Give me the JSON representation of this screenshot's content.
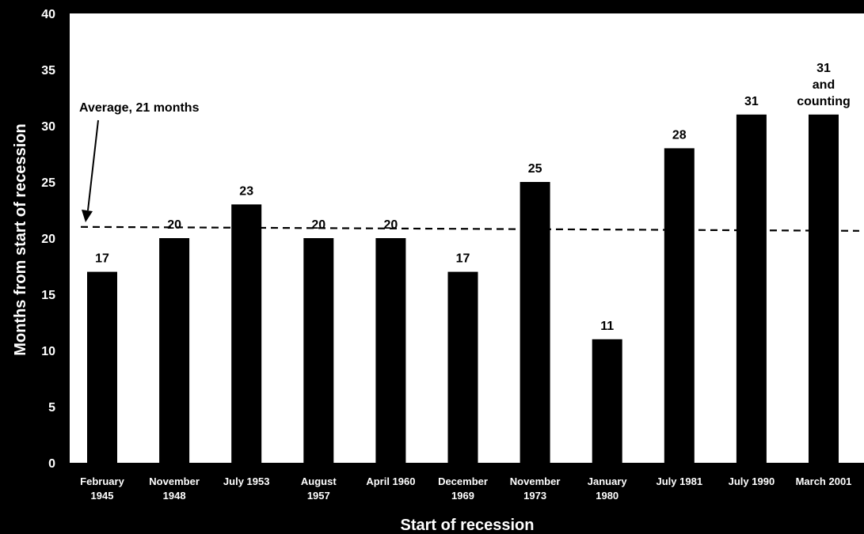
{
  "chart_data": {
    "type": "bar",
    "title": "",
    "xlabel": "Start of recession",
    "ylabel": "Months from start of recession",
    "ylim": [
      0,
      40
    ],
    "yticks": [
      0,
      5,
      10,
      15,
      20,
      25,
      30,
      35,
      40
    ],
    "categories": [
      [
        "February",
        "1945"
      ],
      [
        "November",
        "1948"
      ],
      [
        "July 1953"
      ],
      [
        "August",
        "1957"
      ],
      [
        "April 1960"
      ],
      [
        "December",
        "1969"
      ],
      [
        "November",
        "1973"
      ],
      [
        "January",
        "1980"
      ],
      [
        "July 1981"
      ],
      [
        "July 1990"
      ],
      [
        "March 2001"
      ]
    ],
    "values": [
      17,
      20,
      23,
      20,
      20,
      17,
      25,
      11,
      28,
      31,
      31
    ],
    "data_labels": [
      [
        "17"
      ],
      [
        "20"
      ],
      [
        "23"
      ],
      [
        "20"
      ],
      [
        "20"
      ],
      [
        "17"
      ],
      [
        "25"
      ],
      [
        "11"
      ],
      [
        "28"
      ],
      [
        "31"
      ],
      [
        "31",
        "and",
        "counting"
      ]
    ],
    "reference_line": {
      "value": 21,
      "style": "dashed",
      "label": "Average, 21 months"
    },
    "bar_color": "#000000",
    "plot_background": "#ffffff",
    "frame_color": "#000000",
    "grid": false,
    "legend": "none"
  }
}
